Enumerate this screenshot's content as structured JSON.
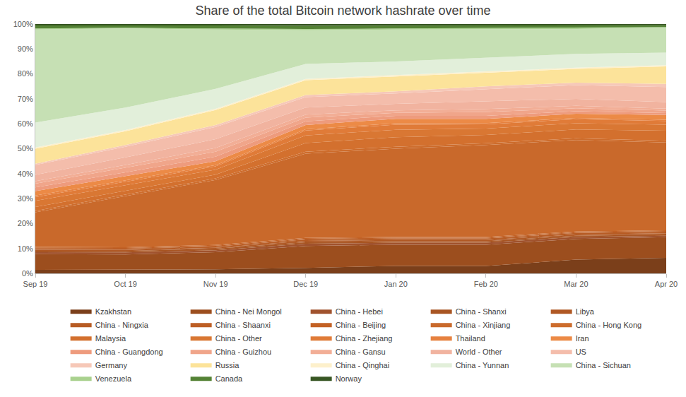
{
  "chart_data": {
    "type": "area",
    "title": "Share of the total Bitcoin network hashrate over time",
    "stacked": true,
    "grid": false,
    "legend": "bottom",
    "categories": [
      "Sep 19",
      "Oct 19",
      "Nov 19",
      "Dec 19",
      "Jan 20",
      "Feb 20",
      "Mar 20",
      "Apr 20"
    ],
    "ylim": [
      0,
      100
    ],
    "yticks": [
      {
        "value": 0,
        "label": "0%"
      },
      {
        "value": 10,
        "label": "10%"
      },
      {
        "value": 20,
        "label": "20%"
      },
      {
        "value": 30,
        "label": "30%"
      },
      {
        "value": 40,
        "label": "40%"
      },
      {
        "value": 50,
        "label": "50%"
      },
      {
        "value": 60,
        "label": "60%"
      },
      {
        "value": 70,
        "label": "70%"
      },
      {
        "value": 80,
        "label": "80%"
      },
      {
        "value": 90,
        "label": "90%"
      },
      {
        "value": 100,
        "label": "100%"
      }
    ],
    "series": [
      {
        "name": "Kzakhstan",
        "color": "#7b3f1a",
        "values": [
          1.4,
          1.5,
          1.6,
          2.2,
          3.0,
          3.0,
          5.5,
          6.2
        ]
      },
      {
        "name": "China - Nei Mongol",
        "color": "#9c4e1e",
        "values": [
          6.3,
          6.1,
          6.9,
          8.8,
          8.5,
          8.5,
          8.3,
          8.3
        ]
      },
      {
        "name": "China - Hebei",
        "color": "#a0522d",
        "values": [
          0.8,
          0.8,
          0.8,
          0.9,
          0.8,
          0.8,
          0.8,
          0.6
        ]
      },
      {
        "name": "China - Shanxi",
        "color": "#a85522",
        "values": [
          0.6,
          0.6,
          0.6,
          0.6,
          0.6,
          0.6,
          0.5,
          0.5
        ]
      },
      {
        "name": "Libya",
        "color": "#b05823",
        "values": [
          0.4,
          0.4,
          0.4,
          0.5,
          0.5,
          0.5,
          0.5,
          0.5
        ]
      },
      {
        "name": "China - Ningxia",
        "color": "#b75b23",
        "values": [
          0.5,
          0.5,
          0.5,
          0.6,
          0.6,
          0.6,
          0.6,
          0.6
        ]
      },
      {
        "name": "China - Shaanxi",
        "color": "#bd5e24",
        "values": [
          0.3,
          0.3,
          0.3,
          0.3,
          0.3,
          0.3,
          0.3,
          0.3
        ]
      },
      {
        "name": "China - Beijing",
        "color": "#c36124",
        "values": [
          0.3,
          0.3,
          0.3,
          0.3,
          0.3,
          0.3,
          0.3,
          0.3
        ]
      },
      {
        "name": "China - Xinjiang",
        "color": "#c9692b",
        "values": [
          13.9,
          20.5,
          26.1,
          33.8,
          35.4,
          36.9,
          36.7,
          35.2
        ]
      },
      {
        "name": "China - Hong Kong",
        "color": "#cd6c2c",
        "values": [
          0.6,
          0.6,
          0.6,
          0.8,
          0.8,
          0.7,
          0.7,
          0.7
        ]
      },
      {
        "name": "Malaysia",
        "color": "#d3702e",
        "values": [
          1.5,
          1.5,
          1.5,
          3.5,
          3.8,
          3.3,
          3.5,
          4.0
        ]
      },
      {
        "name": "China - Other",
        "color": "#d97733",
        "values": [
          2.5,
          2.3,
          2.0,
          3.0,
          3.0,
          2.6,
          2.5,
          2.4
        ]
      },
      {
        "name": "China - Zhejiang",
        "color": "#e07b38",
        "values": [
          1.5,
          1.4,
          1.3,
          2.0,
          2.0,
          1.7,
          1.6,
          1.5
        ]
      },
      {
        "name": "Thailand",
        "color": "#e6813f",
        "values": [
          0.6,
          0.5,
          0.5,
          0.5,
          0.6,
          0.5,
          0.5,
          0.5
        ]
      },
      {
        "name": "Iran",
        "color": "#ec8a46",
        "values": [
          1.8,
          1.7,
          1.6,
          1.7,
          1.8,
          1.7,
          1.7,
          1.9
        ]
      },
      {
        "name": "China - Guangdong",
        "color": "#ee9b7d",
        "values": [
          1.5,
          1.5,
          1.8,
          1.5,
          1.2,
          1.2,
          1.0,
          0.8
        ]
      },
      {
        "name": "China - Guizhou",
        "color": "#f0a58a",
        "values": [
          1.5,
          1.8,
          2.0,
          1.5,
          1.2,
          1.5,
          1.2,
          1.0
        ]
      },
      {
        "name": "China - Gansu",
        "color": "#f2ae96",
        "values": [
          1.0,
          1.2,
          1.5,
          1.2,
          1.0,
          1.2,
          1.0,
          0.8
        ]
      },
      {
        "name": "World - Other",
        "color": "#f1b39f",
        "values": [
          2.5,
          3.0,
          3.5,
          2.8,
          2.6,
          3.0,
          2.8,
          2.6
        ]
      },
      {
        "name": "US",
        "color": "#f4bdab",
        "values": [
          4.0,
          4.3,
          4.9,
          4.2,
          4.2,
          5.0,
          5.5,
          6.0
        ]
      },
      {
        "name": "Germany",
        "color": "#f6c8b8",
        "values": [
          0.5,
          0.7,
          0.8,
          0.8,
          0.8,
          1.1,
          1.0,
          1.3
        ]
      },
      {
        "name": "Russia",
        "color": "#fce39a",
        "values": [
          6.0,
          5.5,
          6.0,
          6.0,
          6.0,
          5.5,
          5.5,
          7.0
        ]
      },
      {
        "name": "China - Qinghai",
        "color": "#fdf0cc",
        "values": [
          0.5,
          0.5,
          0.5,
          0.5,
          0.5,
          0.5,
          0.5,
          0.5
        ]
      },
      {
        "name": "China - Yunnan",
        "color": "#e2efda",
        "values": [
          10.0,
          9.0,
          8.0,
          6.0,
          5.5,
          5.5,
          5.5,
          5.0
        ]
      },
      {
        "name": "China - Sichuan",
        "color": "#c6e0b4",
        "values": [
          37.3,
          31.7,
          23.8,
          13.5,
          12.8,
          11.5,
          10.0,
          10.0
        ]
      },
      {
        "name": "Venezuela",
        "color": "#a9d18e",
        "values": [
          0.4,
          0.3,
          0.4,
          0.5,
          0.4,
          0.4,
          0.4,
          0.3
        ]
      },
      {
        "name": "Canada",
        "color": "#548235",
        "values": [
          1.2,
          1.0,
          1.2,
          1.3,
          1.2,
          1.0,
          1.0,
          0.7
        ]
      },
      {
        "name": "Norway",
        "color": "#375623",
        "values": [
          0.6,
          0.5,
          0.6,
          0.7,
          0.6,
          0.6,
          0.6,
          0.5
        ]
      }
    ]
  }
}
